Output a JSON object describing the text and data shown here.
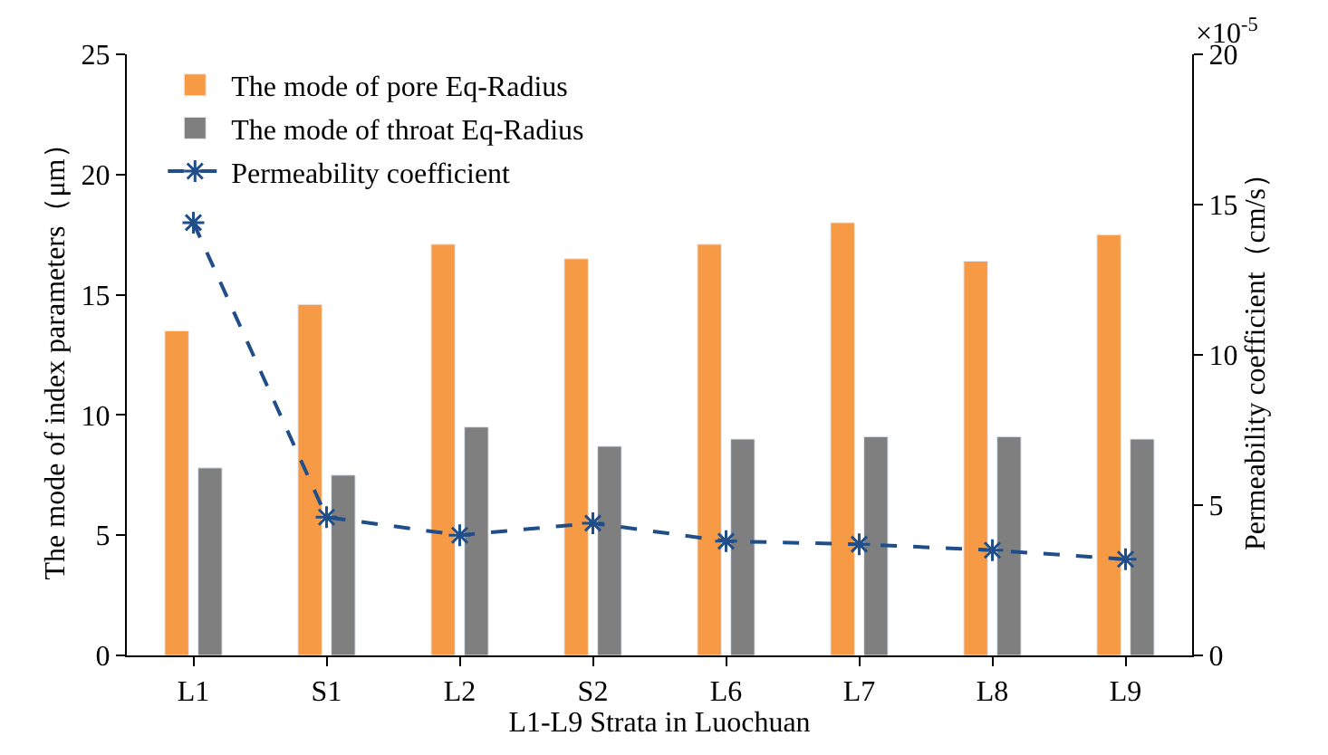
{
  "chart_data": {
    "type": "bar",
    "xlabel": "L1-L9 Strata in Luochuan",
    "ylabel": "The mode of index parameters（μm）",
    "y2label": "Permeability coefficient（cm/s）",
    "categories": [
      "L1",
      "S1",
      "L2",
      "S2",
      "L6",
      "L7",
      "L8",
      "L9"
    ],
    "series": [
      {
        "name": "The mode of pore Eq-Radius",
        "color": "#f79a46",
        "values": [
          13.5,
          14.6,
          17.1,
          16.5,
          17.1,
          18.0,
          16.4,
          17.5
        ]
      },
      {
        "name": "The mode of throat Eq-Radius",
        "color": "#7f7f7f",
        "values": [
          7.8,
          7.5,
          9.5,
          8.7,
          9.0,
          9.1,
          9.1,
          9.0
        ]
      },
      {
        "name": "Permeability coefficient",
        "color": "#1f4e89",
        "type": "line",
        "axis": "y2",
        "marker": "cross",
        "line_style": "dashed",
        "values": [
          14.4,
          4.6,
          4.0,
          4.4,
          3.8,
          3.7,
          3.5,
          3.2
        ]
      }
    ],
    "ylim": [
      0,
      25
    ],
    "yticks": [
      0,
      5,
      10,
      15,
      20,
      25
    ],
    "y2lim": [
      0,
      20
    ],
    "y2ticks": [
      0,
      5,
      10,
      15,
      20
    ],
    "annotations": [
      "×10$^{-5}$"
    ],
    "legend": "top left"
  }
}
